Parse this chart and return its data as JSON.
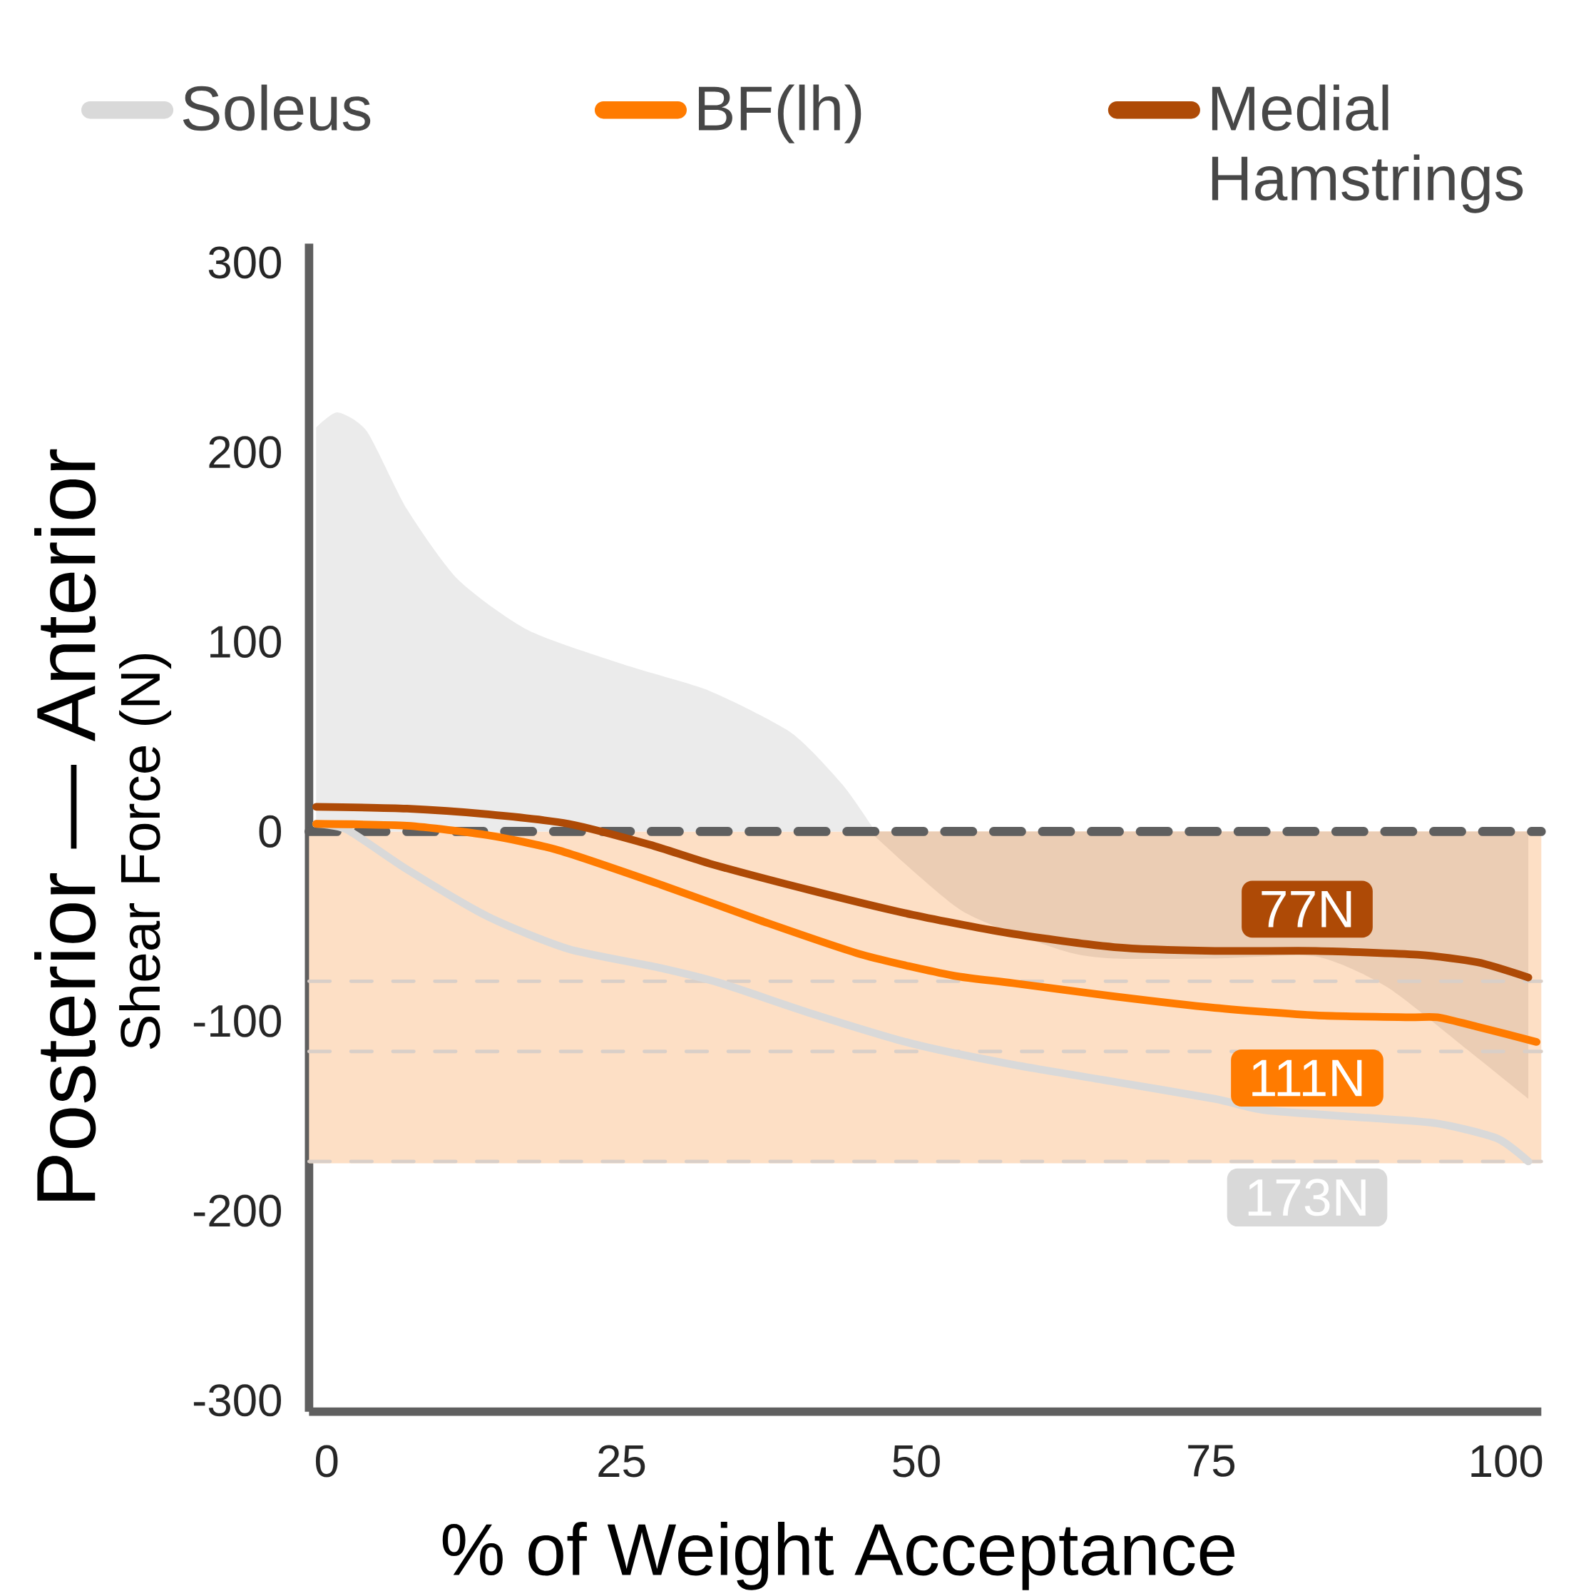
{
  "chart_data": {
    "type": "line",
    "xlabel": "% of Weight Acceptance",
    "ylabel": "Posterior — Anterior",
    "xlim": [
      -1.5,
      103
    ],
    "ylim": [
      -306,
      310
    ],
    "xticks": [
      0,
      25,
      50,
      75,
      100
    ],
    "yticks": [
      -300,
      -200,
      -100,
      0,
      100,
      200,
      300
    ],
    "legend": "top",
    "grid": false,
    "marker": "none",
    "bands": [
      {
        "axis": "y",
        "from": -175,
        "to": 0,
        "color": "#fddfc5"
      }
    ],
    "ref_lines": [
      {
        "axis": "y",
        "value": 0,
        "color": "#5f5f5f",
        "line_style": "dashed"
      },
      {
        "axis": "y",
        "value": -79,
        "color": "#d9cfc8",
        "line_style": "dashed"
      },
      {
        "axis": "y",
        "value": -116,
        "color": "#d9cfc8",
        "line_style": "dashed"
      },
      {
        "axis": "y",
        "value": -174,
        "color": "#d9cfc8",
        "line_style": "dashed"
      }
    ],
    "series": [
      {
        "type": "area",
        "color": "#ebebeb",
        "x": [
          -0.9,
          0.9,
          3.4,
          6.8,
          11.1,
          17.1,
          25.7,
          32.5,
          39.4,
          43.7,
          46.1,
          46.4
        ],
        "values": [
          213,
          221,
          211,
          170,
          133,
          106,
          87,
          74,
          52,
          25,
          4,
          0
        ]
      },
      {
        "type": "area",
        "color": "#ebcdb4",
        "x": [
          46.4,
          53.9,
          62.5,
          66.8,
          75.3,
          83.9,
          89.9,
          96.7,
          101.9
        ],
        "values": [
          -2,
          -42,
          -63,
          -67,
          -67,
          -66,
          -82,
          -115,
          -141
        ]
      },
      {
        "name": "Soleus",
        "color": "#d9d9d9",
        "x": [
          -0.9,
          1.7,
          6.8,
          13.7,
          20.5,
          28.3,
          33.4,
          41.1,
          49.7,
          58.2,
          66.8,
          75.3,
          79.6,
          88.2,
          94.2,
          99.3,
          101.9
        ],
        "values": [
          4,
          1,
          -20,
          -45,
          -62,
          -72,
          -80,
          -96,
          -112,
          -123,
          -132,
          -141,
          -147,
          -151,
          -154,
          -162,
          -174
        ]
      },
      {
        "name": "BF(lh)",
        "color": "#ff7b00",
        "x": [
          -0.9,
          6.8,
          13.7,
          19.7,
          28.3,
          36.8,
          45.4,
          53.1,
          58.2,
          66.8,
          75.3,
          83.9,
          91.6,
          94.2,
          97.6,
          102.6
        ],
        "values": [
          4,
          3,
          -2,
          -10,
          -28,
          -47,
          -65,
          -76,
          -80,
          -87,
          -93,
          -97,
          -98,
          -98,
          -103,
          -111
        ]
      },
      {
        "name": "Medial Hamstrings",
        "color": "#ae4a06",
        "x": [
          -0.9,
          6.8,
          13.7,
          20.5,
          27.4,
          32.5,
          41,
          49.7,
          58.2,
          66.8,
          75.3,
          83.9,
          92.5,
          97.6,
          101.9
        ],
        "values": [
          13,
          12,
          9,
          4,
          -7,
          -17,
          -31,
          -44,
          -54,
          -61,
          -63,
          -63,
          -65,
          -69,
          -77
        ]
      }
    ],
    "annotations": [
      "Shear Force (N)",
      "77N",
      "111N",
      "173N"
    ]
  }
}
